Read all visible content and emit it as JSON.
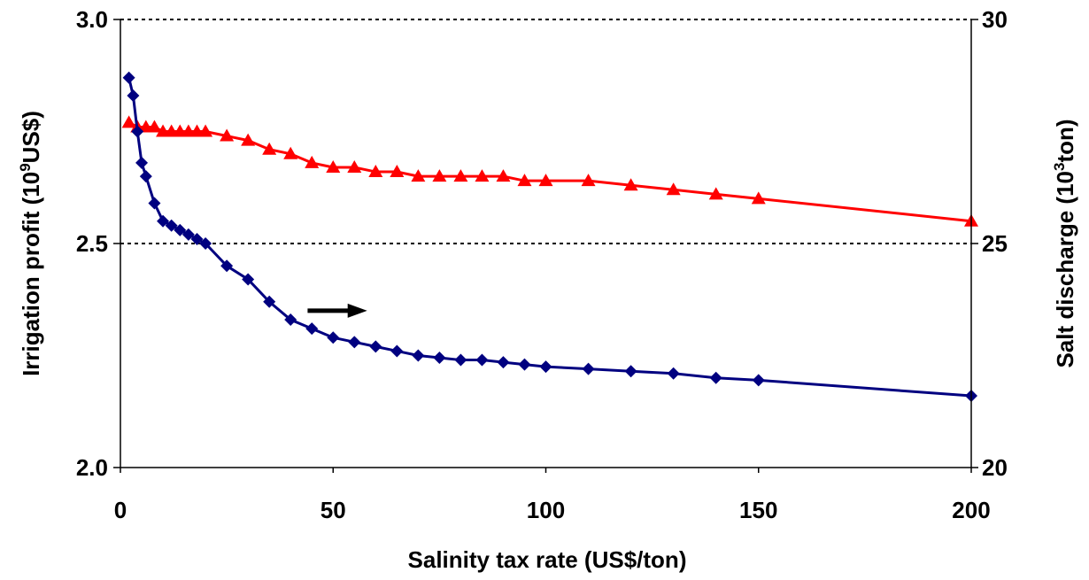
{
  "chart_data": {
    "type": "line",
    "xlabel": "Salinity tax rate (US$/ton)",
    "ylabel_left": {
      "text": "Irrigation profit (10",
      "sup": "9",
      "tail": "US$)"
    },
    "ylabel_right": {
      "text": "Salt discharge (10",
      "sup": "3",
      "tail": "ton)"
    },
    "xlim": [
      0,
      200
    ],
    "ylim_left": [
      2.0,
      3.0
    ],
    "ylim_right": [
      20,
      30
    ],
    "x_ticks": [
      "0",
      "50",
      "100",
      "150",
      "200"
    ],
    "y_ticks_left": [
      "2.0",
      "2.5",
      "3.0"
    ],
    "y_ticks_right": [
      "20",
      "25",
      "30"
    ],
    "grid": "horizontal dotted",
    "series": [
      {
        "axis": "left",
        "color": "#ff0000",
        "marker": "triangle",
        "x": [
          2,
          4,
          6,
          8,
          10,
          12,
          14,
          16,
          18,
          20,
          25,
          30,
          35,
          40,
          45,
          50,
          55,
          60,
          65,
          70,
          75,
          80,
          85,
          90,
          95,
          100,
          110,
          120,
          130,
          140,
          150,
          200
        ],
        "values": [
          2.77,
          2.76,
          2.76,
          2.76,
          2.75,
          2.75,
          2.75,
          2.75,
          2.75,
          2.75,
          2.74,
          2.73,
          2.71,
          2.7,
          2.68,
          2.67,
          2.67,
          2.66,
          2.66,
          2.65,
          2.65,
          2.65,
          2.65,
          2.65,
          2.64,
          2.64,
          2.64,
          2.63,
          2.62,
          2.61,
          2.6,
          2.55
        ]
      },
      {
        "axis": "right",
        "color": "#000080",
        "marker": "diamond",
        "x": [
          2,
          3,
          4,
          5,
          6,
          8,
          10,
          12,
          14,
          16,
          18,
          20,
          25,
          30,
          35,
          40,
          45,
          50,
          55,
          60,
          65,
          70,
          75,
          80,
          85,
          90,
          95,
          100,
          110,
          120,
          130,
          140,
          150,
          200
        ],
        "values": [
          28.7,
          28.3,
          27.5,
          26.8,
          26.5,
          25.9,
          25.5,
          25.4,
          25.3,
          25.2,
          25.1,
          25.0,
          24.5,
          24.2,
          23.7,
          23.3,
          23.1,
          22.9,
          22.8,
          22.7,
          22.6,
          22.5,
          22.45,
          22.4,
          22.4,
          22.35,
          22.3,
          22.25,
          22.2,
          22.15,
          22.1,
          22.0,
          21.95,
          21.6
        ]
      }
    ],
    "annotation_arrow": {
      "from": [
        44,
        23.5
      ],
      "to": [
        58,
        23.5
      ],
      "color": "#000000"
    }
  }
}
